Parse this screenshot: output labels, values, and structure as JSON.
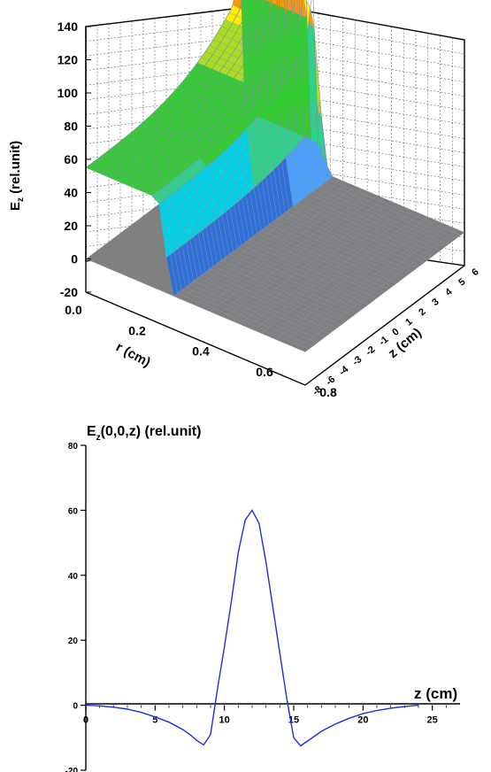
{
  "chart_data": [
    {
      "type": "surface",
      "zlabel_main": "E",
      "zlabel_sub": "z",
      "zlabel_rest": " (rel.unit)",
      "xlabel": "r (cm)",
      "ylabel": "z (cm)",
      "zlim": [
        -20,
        140
      ],
      "z_ticks": [
        "140",
        "120",
        "100",
        "80",
        "60",
        "40",
        "20",
        "0",
        "-20"
      ],
      "r_ticks": [
        "0.0",
        "0.2",
        "0.4",
        "0.6",
        "0.8"
      ],
      "z_axis_ticks": [
        "-8",
        "-6",
        "-4",
        "-3",
        "-2",
        "-1",
        "0",
        "1",
        "2",
        "3",
        "4",
        "5",
        "6"
      ],
      "peak_value": 122,
      "peak_z_cm": 2,
      "grid": true,
      "colormap": [
        "#7f7f7f",
        "#2f6fd8",
        "#4aa0ff",
        "#00d2e6",
        "#2fd08a",
        "#33cc33",
        "#aadd22",
        "#ffee00",
        "#ff9900",
        "#ff4400"
      ]
    },
    {
      "type": "line",
      "title_main": "E",
      "title_sub": "z",
      "title_rest": "(0,0,z) (rel.unit)",
      "xlabel": "z (cm)",
      "ylabel": "",
      "xlim": [
        0,
        27
      ],
      "ylim": [
        -20,
        80
      ],
      "x_ticks": [
        "0",
        "5",
        "10",
        "15",
        "20",
        "25"
      ],
      "y_ticks": [
        "80",
        "60",
        "40",
        "20",
        "0",
        "-20"
      ],
      "grid": false,
      "series": [
        {
          "color": "#1f2fd8",
          "x": [
            0,
            1,
            2,
            3,
            4,
            5,
            6,
            7,
            7.5,
            8,
            8.5,
            9,
            9.5,
            10,
            10.5,
            11,
            11.5,
            12,
            12.5,
            13,
            13.5,
            14,
            14.5,
            15,
            15.5,
            16,
            17,
            18,
            19,
            20,
            21,
            22,
            23,
            24
          ],
          "y": [
            0,
            -0.2,
            -0.6,
            -1.2,
            -2.2,
            -3.6,
            -5.2,
            -7.5,
            -9,
            -10.8,
            -12.2,
            -9,
            5,
            18,
            32,
            47,
            57,
            60,
            56,
            44,
            30,
            16,
            2,
            -10,
            -12.5,
            -11,
            -8,
            -5.8,
            -4,
            -2.6,
            -1.6,
            -0.9,
            -0.4,
            0
          ]
        }
      ]
    }
  ]
}
